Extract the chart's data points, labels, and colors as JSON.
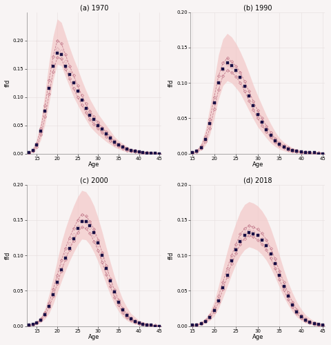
{
  "panels": [
    {
      "title": "(a) 1970",
      "ages": [
        13,
        14,
        15,
        16,
        17,
        18,
        19,
        20,
        21,
        22,
        23,
        24,
        25,
        26,
        27,
        28,
        29,
        30,
        31,
        32,
        33,
        34,
        35,
        36,
        37,
        38,
        39,
        40,
        41,
        42,
        43,
        44,
        45
      ],
      "observed": [
        0.002,
        0.005,
        0.015,
        0.04,
        0.075,
        0.115,
        0.155,
        0.178,
        0.175,
        0.155,
        0.14,
        0.125,
        0.11,
        0.095,
        0.08,
        0.068,
        0.06,
        0.05,
        0.043,
        0.035,
        0.028,
        0.02,
        0.015,
        0.012,
        0.008,
        0.006,
        0.004,
        0.003,
        0.002,
        0.001,
        0.001,
        0.001,
        0.0
      ],
      "sim1": [
        0.002,
        0.006,
        0.018,
        0.045,
        0.085,
        0.13,
        0.172,
        0.2,
        0.195,
        0.175,
        0.155,
        0.138,
        0.12,
        0.103,
        0.088,
        0.075,
        0.065,
        0.055,
        0.046,
        0.038,
        0.03,
        0.022,
        0.017,
        0.013,
        0.009,
        0.006,
        0.005,
        0.003,
        0.002,
        0.002,
        0.001,
        0.001,
        0.0
      ],
      "sim2": [
        0.001,
        0.004,
        0.012,
        0.033,
        0.065,
        0.105,
        0.145,
        0.17,
        0.168,
        0.15,
        0.132,
        0.115,
        0.1,
        0.086,
        0.073,
        0.06,
        0.052,
        0.044,
        0.037,
        0.03,
        0.023,
        0.017,
        0.013,
        0.009,
        0.006,
        0.004,
        0.003,
        0.002,
        0.001,
        0.001,
        0.001,
        0.0,
        0.0
      ],
      "ci_low": [
        0.001,
        0.003,
        0.009,
        0.025,
        0.052,
        0.09,
        0.13,
        0.158,
        0.155,
        0.136,
        0.118,
        0.1,
        0.086,
        0.072,
        0.06,
        0.048,
        0.04,
        0.033,
        0.027,
        0.021,
        0.016,
        0.011,
        0.008,
        0.005,
        0.003,
        0.002,
        0.001,
        0.001,
        0.001,
        0.0,
        0.0,
        0.0,
        0.0
      ],
      "ci_high": [
        0.003,
        0.009,
        0.026,
        0.058,
        0.108,
        0.162,
        0.208,
        0.238,
        0.232,
        0.21,
        0.188,
        0.168,
        0.15,
        0.13,
        0.112,
        0.096,
        0.083,
        0.07,
        0.06,
        0.05,
        0.04,
        0.03,
        0.023,
        0.018,
        0.013,
        0.009,
        0.007,
        0.005,
        0.004,
        0.003,
        0.002,
        0.001,
        0.001
      ],
      "ylim": [
        0.0,
        0.25
      ],
      "yticks": [
        0.0,
        0.05,
        0.1,
        0.15,
        0.2
      ],
      "xlim": [
        12.5,
        45.5
      ]
    },
    {
      "title": "(b) 1990",
      "ages": [
        15,
        16,
        17,
        18,
        19,
        20,
        21,
        22,
        23,
        24,
        25,
        26,
        27,
        28,
        29,
        30,
        31,
        32,
        33,
        34,
        35,
        36,
        37,
        38,
        39,
        40,
        41,
        42,
        43,
        44,
        45
      ],
      "observed": [
        0.001,
        0.003,
        0.008,
        0.02,
        0.042,
        0.072,
        0.1,
        0.12,
        0.128,
        0.125,
        0.118,
        0.108,
        0.095,
        0.082,
        0.068,
        0.055,
        0.044,
        0.034,
        0.026,
        0.018,
        0.013,
        0.009,
        0.006,
        0.004,
        0.003,
        0.002,
        0.001,
        0.001,
        0.001,
        0.0,
        0.0
      ],
      "sim1": [
        0.001,
        0.004,
        0.01,
        0.024,
        0.048,
        0.08,
        0.11,
        0.128,
        0.135,
        0.13,
        0.124,
        0.115,
        0.102,
        0.088,
        0.074,
        0.061,
        0.05,
        0.039,
        0.03,
        0.021,
        0.015,
        0.011,
        0.008,
        0.005,
        0.004,
        0.002,
        0.002,
        0.001,
        0.001,
        0.001,
        0.0
      ],
      "sim2": [
        0.001,
        0.002,
        0.007,
        0.017,
        0.036,
        0.063,
        0.09,
        0.11,
        0.118,
        0.115,
        0.109,
        0.1,
        0.088,
        0.075,
        0.062,
        0.05,
        0.04,
        0.031,
        0.023,
        0.016,
        0.011,
        0.008,
        0.005,
        0.003,
        0.002,
        0.001,
        0.001,
        0.001,
        0.0,
        0.0,
        0.0
      ],
      "ci_low": [
        0.0,
        0.001,
        0.005,
        0.012,
        0.027,
        0.05,
        0.077,
        0.096,
        0.103,
        0.1,
        0.093,
        0.085,
        0.073,
        0.061,
        0.049,
        0.038,
        0.03,
        0.022,
        0.015,
        0.01,
        0.006,
        0.004,
        0.002,
        0.001,
        0.001,
        0.001,
        0.0,
        0.0,
        0.0,
        0.0,
        0.0
      ],
      "ci_high": [
        0.002,
        0.005,
        0.015,
        0.034,
        0.065,
        0.104,
        0.14,
        0.162,
        0.17,
        0.165,
        0.156,
        0.144,
        0.13,
        0.114,
        0.097,
        0.082,
        0.068,
        0.054,
        0.042,
        0.031,
        0.022,
        0.016,
        0.012,
        0.008,
        0.006,
        0.004,
        0.003,
        0.002,
        0.001,
        0.001,
        0.001
      ],
      "ylim": [
        0.0,
        0.2
      ],
      "yticks": [
        0.0,
        0.05,
        0.1,
        0.15,
        0.2
      ],
      "xlim": [
        14.5,
        45.5
      ]
    },
    {
      "title": "(c) 2000",
      "ages": [
        13,
        14,
        15,
        16,
        17,
        18,
        19,
        20,
        21,
        22,
        23,
        24,
        25,
        26,
        27,
        28,
        29,
        30,
        31,
        32,
        33,
        34,
        35,
        36,
        37,
        38,
        39,
        40,
        41,
        42,
        43,
        44,
        45
      ],
      "observed": [
        0.001,
        0.002,
        0.004,
        0.008,
        0.016,
        0.028,
        0.044,
        0.062,
        0.08,
        0.096,
        0.11,
        0.124,
        0.138,
        0.148,
        0.148,
        0.142,
        0.132,
        0.118,
        0.1,
        0.082,
        0.064,
        0.048,
        0.034,
        0.023,
        0.015,
        0.01,
        0.006,
        0.004,
        0.002,
        0.001,
        0.001,
        0.0,
        0.0
      ],
      "sim1": [
        0.001,
        0.002,
        0.005,
        0.01,
        0.019,
        0.033,
        0.052,
        0.072,
        0.093,
        0.11,
        0.125,
        0.138,
        0.15,
        0.158,
        0.156,
        0.148,
        0.137,
        0.122,
        0.104,
        0.085,
        0.067,
        0.051,
        0.037,
        0.025,
        0.017,
        0.011,
        0.007,
        0.004,
        0.003,
        0.002,
        0.001,
        0.001,
        0.0
      ],
      "sim2": [
        0.001,
        0.002,
        0.004,
        0.008,
        0.015,
        0.027,
        0.042,
        0.06,
        0.078,
        0.094,
        0.108,
        0.121,
        0.132,
        0.14,
        0.138,
        0.131,
        0.12,
        0.107,
        0.09,
        0.073,
        0.056,
        0.041,
        0.03,
        0.019,
        0.012,
        0.008,
        0.005,
        0.003,
        0.002,
        0.001,
        0.001,
        0.0,
        0.0
      ],
      "ci_low": [
        0.0,
        0.001,
        0.002,
        0.005,
        0.01,
        0.018,
        0.031,
        0.047,
        0.063,
        0.078,
        0.092,
        0.104,
        0.115,
        0.123,
        0.122,
        0.115,
        0.104,
        0.091,
        0.075,
        0.059,
        0.044,
        0.031,
        0.021,
        0.013,
        0.008,
        0.005,
        0.003,
        0.002,
        0.001,
        0.001,
        0.0,
        0.0,
        0.0
      ],
      "ci_high": [
        0.002,
        0.004,
        0.007,
        0.013,
        0.025,
        0.045,
        0.068,
        0.093,
        0.118,
        0.138,
        0.155,
        0.17,
        0.183,
        0.192,
        0.19,
        0.182,
        0.17,
        0.153,
        0.133,
        0.111,
        0.09,
        0.07,
        0.053,
        0.038,
        0.027,
        0.018,
        0.013,
        0.008,
        0.006,
        0.004,
        0.003,
        0.002,
        0.001
      ],
      "ylim": [
        0.0,
        0.2
      ],
      "yticks": [
        0.0,
        0.05,
        0.1,
        0.15,
        0.2
      ],
      "xlim": [
        12.5,
        45.5
      ]
    },
    {
      "title": "(d) 2018",
      "ages": [
        15,
        16,
        17,
        18,
        19,
        20,
        21,
        22,
        23,
        24,
        25,
        26,
        27,
        28,
        29,
        30,
        31,
        32,
        33,
        34,
        35,
        36,
        37,
        38,
        39,
        40,
        41,
        42,
        43,
        44,
        45
      ],
      "observed": [
        0.001,
        0.001,
        0.003,
        0.006,
        0.012,
        0.022,
        0.036,
        0.054,
        0.072,
        0.092,
        0.108,
        0.12,
        0.128,
        0.132,
        0.13,
        0.128,
        0.122,
        0.114,
        0.102,
        0.088,
        0.072,
        0.056,
        0.042,
        0.03,
        0.02,
        0.013,
        0.008,
        0.005,
        0.003,
        0.002,
        0.001
      ],
      "sim1": [
        0.001,
        0.002,
        0.004,
        0.008,
        0.015,
        0.026,
        0.042,
        0.062,
        0.082,
        0.1,
        0.116,
        0.13,
        0.138,
        0.142,
        0.14,
        0.137,
        0.131,
        0.122,
        0.11,
        0.095,
        0.078,
        0.062,
        0.047,
        0.034,
        0.023,
        0.015,
        0.01,
        0.006,
        0.004,
        0.002,
        0.001
      ],
      "sim2": [
        0.001,
        0.001,
        0.003,
        0.006,
        0.011,
        0.02,
        0.034,
        0.052,
        0.07,
        0.088,
        0.103,
        0.116,
        0.124,
        0.128,
        0.126,
        0.122,
        0.116,
        0.108,
        0.096,
        0.082,
        0.066,
        0.051,
        0.038,
        0.027,
        0.018,
        0.011,
        0.007,
        0.004,
        0.002,
        0.001,
        0.001
      ],
      "ci_low": [
        0.0,
        0.001,
        0.002,
        0.004,
        0.008,
        0.014,
        0.025,
        0.04,
        0.056,
        0.073,
        0.088,
        0.1,
        0.108,
        0.112,
        0.11,
        0.107,
        0.101,
        0.093,
        0.082,
        0.069,
        0.055,
        0.041,
        0.03,
        0.02,
        0.013,
        0.008,
        0.004,
        0.003,
        0.001,
        0.001,
        0.0
      ],
      "ci_high": [
        0.002,
        0.003,
        0.006,
        0.011,
        0.02,
        0.035,
        0.057,
        0.082,
        0.106,
        0.128,
        0.146,
        0.162,
        0.172,
        0.176,
        0.174,
        0.17,
        0.163,
        0.153,
        0.138,
        0.12,
        0.1,
        0.08,
        0.062,
        0.047,
        0.034,
        0.024,
        0.016,
        0.011,
        0.007,
        0.005,
        0.003
      ],
      "ylim": [
        0.0,
        0.2
      ],
      "yticks": [
        0.0,
        0.05,
        0.1,
        0.15,
        0.2
      ],
      "xlim": [
        14.5,
        45.5
      ]
    }
  ],
  "obs_color": "#1a1045",
  "sim_color": "#c47d8e",
  "ci_color": "#f2c4c4",
  "bg_color": "#f8f4f4",
  "grid_color": "#e5dede",
  "ylabel": "ffd",
  "xlabel": "Age",
  "title_fontsize": 7,
  "axis_fontsize": 6,
  "tick_fontsize": 5
}
